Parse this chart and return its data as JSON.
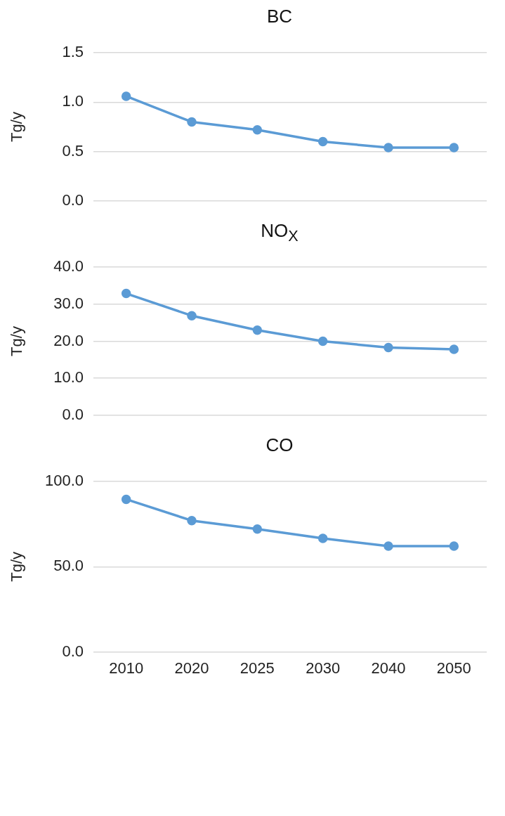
{
  "chart_data": [
    {
      "type": "line",
      "title": "BC",
      "ylabel": "Tg/y",
      "categories": [
        "2010",
        "2020",
        "2025",
        "2030",
        "2040",
        "2050"
      ],
      "series": [
        {
          "color": "#5b9bd5",
          "values": [
            1.06,
            0.8,
            0.72,
            0.6,
            0.54,
            0.54
          ]
        }
      ],
      "ylim": [
        0,
        1.5
      ],
      "yticks": [
        {
          "value": 0,
          "label": "0.0"
        },
        {
          "value": 0.5,
          "label": "0.5"
        },
        {
          "value": 1,
          "label": "1.0"
        },
        {
          "value": 1.5,
          "label": "1.5"
        }
      ],
      "grid": "y",
      "legend": false,
      "marker": "circle",
      "line_style": "solid",
      "tick_labels": "y"
    },
    {
      "type": "line",
      "title": "NO$_{X}$",
      "ylabel": "Tg/y",
      "categories": [
        "2010",
        "2020",
        "2025",
        "2030",
        "2040",
        "2050"
      ],
      "series": [
        {
          "color": "#5b9bd5",
          "values": [
            32.9,
            26.9,
            23,
            20,
            18.3,
            17.8
          ]
        }
      ],
      "ylim": [
        0,
        40
      ],
      "yticks": [
        {
          "value": 0,
          "label": "0.0"
        },
        {
          "value": 10,
          "label": "10.0"
        },
        {
          "value": 20,
          "label": "20.0"
        },
        {
          "value": 30,
          "label": "30.0"
        },
        {
          "value": 40,
          "label": "40.0"
        }
      ],
      "grid": "y",
      "legend": false,
      "marker": "circle",
      "line_style": "solid",
      "tick_labels": "y"
    },
    {
      "type": "line",
      "title": "CO",
      "ylabel": "Tg/y",
      "categories": [
        "2010",
        "2020",
        "2025",
        "2030",
        "2040",
        "2050"
      ],
      "series": [
        {
          "color": "#5b9bd5",
          "values": [
            89.6,
            77.1,
            72.1,
            66.7,
            62.1,
            62.1
          ]
        }
      ],
      "ylim": [
        0,
        100
      ],
      "yticks": [
        {
          "value": 0,
          "label": "0.0"
        },
        {
          "value": 50,
          "label": "50.0"
        },
        {
          "value": 100,
          "label": "100.0"
        }
      ],
      "grid": "y",
      "legend": false,
      "marker": "circle",
      "line_style": "solid"
    }
  ]
}
